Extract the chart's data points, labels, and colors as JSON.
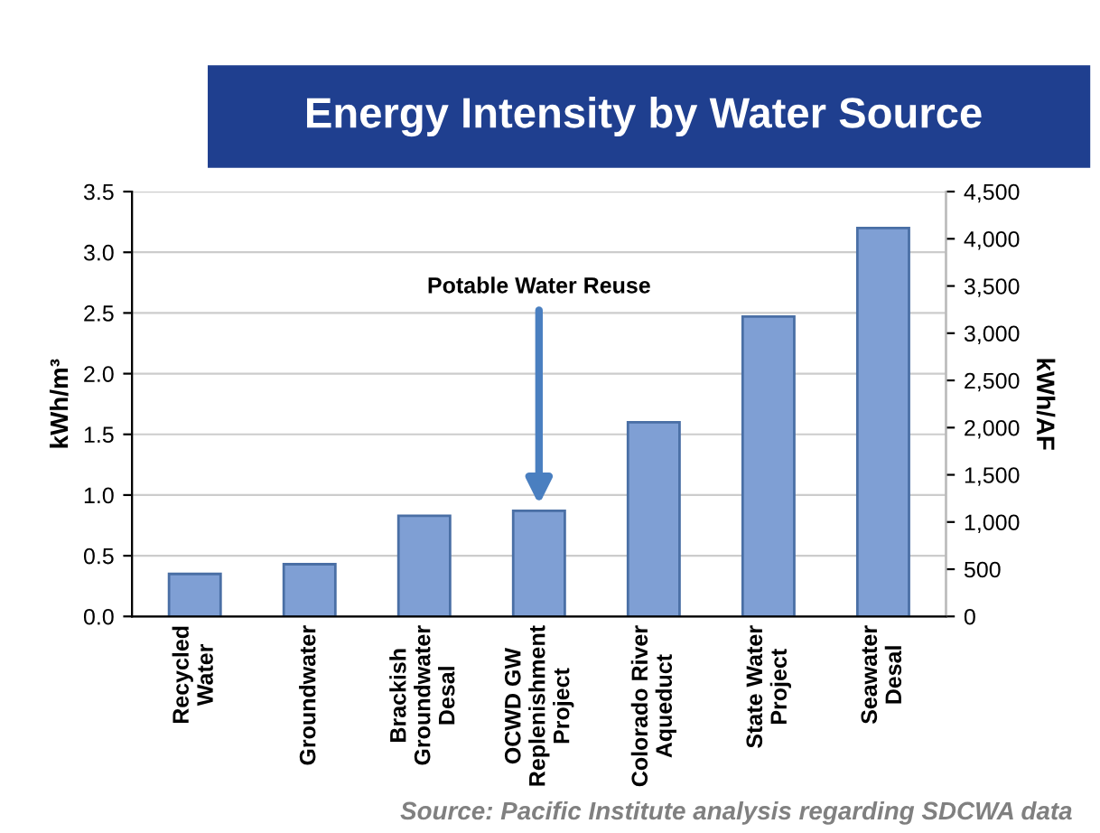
{
  "chart_data": {
    "type": "bar",
    "title": "Energy Intensity by Water Source",
    "categories": [
      "Recycled\nWater",
      "Groundwater",
      "Brackish\nGroundwater\nDesal",
      "OCWD GW\nReplenishment\nProject",
      "Colorado River\nAqueduct",
      "State Water\nProject",
      "Seawater\nDesal"
    ],
    "values": [
      0.35,
      0.43,
      0.83,
      0.87,
      1.6,
      2.47,
      3.2
    ],
    "color": "#7f9fd4",
    "ylabel": "kWh/m³",
    "y2label": "kWh/AF",
    "ylim": [
      0,
      3.5
    ],
    "yticks": [
      {
        "value": 0,
        "label": "0.0"
      },
      0.5,
      {
        "value": 1,
        "label": "1.0"
      },
      1.5,
      {
        "value": 2,
        "label": "2.0"
      },
      2.5,
      {
        "value": 3,
        "label": "3.0"
      },
      3.5
    ],
    "y2lim": [
      0,
      4500
    ],
    "y2ticks": [
      0,
      500,
      {
        "value": 1000,
        "label": "1,000"
      },
      {
        "value": 1500,
        "label": "1,500"
      },
      {
        "value": 2000,
        "label": "2,000"
      },
      {
        "value": 2500,
        "label": "2,500"
      },
      {
        "value": 3000,
        "label": "3,000"
      },
      {
        "value": 3500,
        "label": "3,500"
      },
      {
        "value": 4000,
        "label": "4,000"
      },
      {
        "value": 4500,
        "label": "4,500"
      }
    ],
    "grid": "y",
    "annotations": [
      {
        "text": "Potable Water Reuse",
        "x": "OCWD GW\nReplenishment\nProject",
        "y": 0.87
      },
      "Source: Pacific Institute analysis regarding SDCWA data"
    ]
  }
}
